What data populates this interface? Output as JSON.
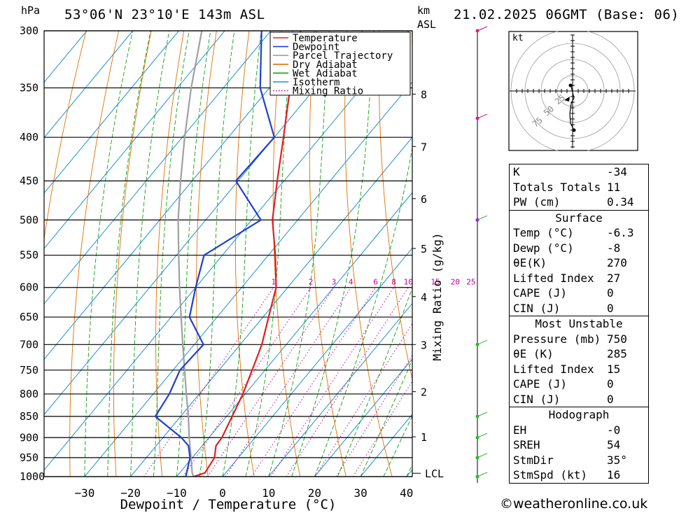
{
  "header": {
    "location": "53°06'N  23°10'E  143m  ASL",
    "date": "21.02.2025  06GMT  (Base:  06)"
  },
  "axes": {
    "hpa_label": "hPa",
    "km_label": "km",
    "asl_label": "ASL",
    "xlabel": "Dewpoint / Temperature (°C)",
    "mixing_label": "Mixing Ratio (g/kg)",
    "lcl_label": "LCL",
    "hodo_unit": "kt"
  },
  "legend": [
    {
      "label": "Temperature",
      "color": "#e02020",
      "style": "solid"
    },
    {
      "label": "Dewpoint",
      "color": "#1f3fd0",
      "style": "solid"
    },
    {
      "label": "Parcel Trajectory",
      "color": "#a0a0a0",
      "style": "solid"
    },
    {
      "label": "Dry Adiabat",
      "color": "#e07000",
      "style": "solid"
    },
    {
      "label": "Wet Adiabat",
      "color": "#10a010",
      "style": "solid"
    },
    {
      "label": "Isotherm",
      "color": "#1e90d0",
      "style": "solid"
    },
    {
      "label": "Mixing Ratio",
      "color": "#c000a0",
      "style": "dotted"
    }
  ],
  "chart_data": {
    "type": "line",
    "title": "53°06'N  23°10'E  143m  ASL",
    "xlabel": "Dewpoint / Temperature (°C)",
    "ylabel": "hPa",
    "xlim": [
      -38,
      40
    ],
    "ylim": [
      1000,
      300
    ],
    "x_ticks": [
      -30,
      -20,
      -10,
      0,
      10,
      20,
      30,
      40
    ],
    "pressure_levels": [
      300,
      350,
      400,
      450,
      500,
      550,
      600,
      650,
      700,
      750,
      800,
      850,
      900,
      950,
      1000
    ],
    "km_ticks": [
      {
        "km": 1,
        "p": 898
      },
      {
        "km": 2,
        "p": 795
      },
      {
        "km": 3,
        "p": 700
      },
      {
        "km": 4,
        "p": 615
      },
      {
        "km": 5,
        "p": 540
      },
      {
        "km": 6,
        "p": 472
      },
      {
        "km": 7,
        "p": 410
      },
      {
        "km": 8,
        "p": 356
      }
    ],
    "lcl_p": 991,
    "mixing_ratio_labels": [
      "1",
      "2",
      "3",
      "4",
      "6",
      "8",
      "10",
      "15",
      "20",
      "25"
    ],
    "mixing_ratio_values": [
      1,
      2,
      3,
      4,
      6,
      8,
      10,
      15,
      20,
      25
    ],
    "series": [
      {
        "name": "Temperature",
        "color": "#e02020",
        "points": [
          [
            1000,
            -6.3
          ],
          [
            990,
            -4.5
          ],
          [
            950,
            -5.2
          ],
          [
            920,
            -7.0
          ],
          [
            900,
            -7.2
          ],
          [
            850,
            -8.8
          ],
          [
            800,
            -10.5
          ],
          [
            750,
            -12.8
          ],
          [
            700,
            -15.3
          ],
          [
            650,
            -18.8
          ],
          [
            600,
            -22.5
          ],
          [
            550,
            -28.5
          ],
          [
            500,
            -35.5
          ],
          [
            450,
            -41.5
          ],
          [
            400,
            -48.0
          ],
          [
            350,
            -55.5
          ],
          [
            300,
            -63.5
          ]
        ]
      },
      {
        "name": "Dewpoint",
        "color": "#1f3fd0",
        "points": [
          [
            1000,
            -8.0
          ],
          [
            950,
            -10.5
          ],
          [
            920,
            -13.0
          ],
          [
            900,
            -16.0
          ],
          [
            850,
            -25.5
          ],
          [
            800,
            -26.5
          ],
          [
            750,
            -28.5
          ],
          [
            700,
            -28.0
          ],
          [
            650,
            -36.0
          ],
          [
            600,
            -40.0
          ],
          [
            550,
            -44.0
          ],
          [
            500,
            -38.0
          ],
          [
            450,
            -50.5
          ],
          [
            400,
            -50.0
          ],
          [
            350,
            -62.0
          ],
          [
            300,
            -72.0
          ]
        ]
      },
      {
        "name": "Parcel Trajectory",
        "color": "#a0a0a0",
        "points": [
          [
            1000,
            -6.3
          ],
          [
            990,
            -7.3
          ],
          [
            950,
            -10.3
          ],
          [
            900,
            -14.3
          ],
          [
            850,
            -18.3
          ],
          [
            800,
            -22.8
          ],
          [
            750,
            -27.5
          ],
          [
            700,
            -32.5
          ],
          [
            650,
            -37.8
          ],
          [
            600,
            -43.5
          ],
          [
            550,
            -49.5
          ],
          [
            500,
            -56.0
          ],
          [
            450,
            -62.5
          ],
          [
            400,
            -69.5
          ],
          [
            350,
            -77.0
          ],
          [
            300,
            -85.0
          ]
        ]
      }
    ]
  },
  "hodograph": {
    "ring_labels": [
      "25",
      "50",
      "75"
    ]
  },
  "wind_barbs": {
    "levels": [
      300,
      380,
      500,
      700,
      850,
      900,
      950,
      1000
    ]
  },
  "indices": {
    "rows": [
      {
        "label": "K",
        "value": "-34"
      },
      {
        "label": "Totals Totals",
        "value": "11"
      },
      {
        "label": "PW (cm)",
        "value": "0.34"
      }
    ],
    "surface": {
      "title": "Surface",
      "rows": [
        {
          "label": "Temp (°C)",
          "value": "-6.3"
        },
        {
          "label": "Dewp (°C)",
          "value": "-8"
        },
        {
          "label": "θE(K)",
          "value": "270"
        },
        {
          "label": "Lifted Index",
          "value": "27"
        },
        {
          "label": "CAPE (J)",
          "value": "0"
        },
        {
          "label": "CIN (J)",
          "value": "0"
        }
      ]
    },
    "most_unstable": {
      "title": "Most Unstable",
      "rows": [
        {
          "label": "Pressure (mb)",
          "value": "750"
        },
        {
          "label": "θE (K)",
          "value": "285"
        },
        {
          "label": "Lifted Index",
          "value": "15"
        },
        {
          "label": "CAPE (J)",
          "value": "0"
        },
        {
          "label": "CIN (J)",
          "value": "0"
        }
      ]
    },
    "hodograph": {
      "title": "Hodograph",
      "rows": [
        {
          "label": "EH",
          "value": "-0"
        },
        {
          "label": "SREH",
          "value": "54"
        },
        {
          "label": "StmDir",
          "value": "35°"
        },
        {
          "label": "StmSpd (kt)",
          "value": "16"
        }
      ]
    }
  },
  "credit": "©weatheronline.co.uk"
}
